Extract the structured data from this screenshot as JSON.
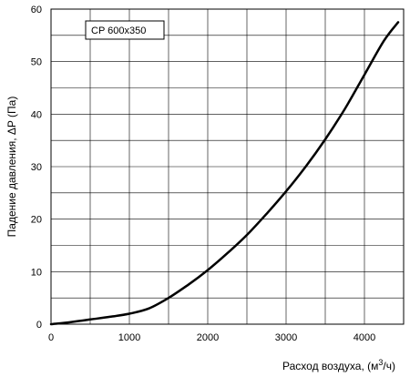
{
  "chart_data": {
    "type": "line",
    "xlabel_prefix": "Расход воздуха, (м",
    "xlabel_sup": "3",
    "xlabel_suffix": "/ч)",
    "ylabel": "Падение давления, ΔP (Па)",
    "xlim": [
      0,
      4500
    ],
    "ylim": [
      0,
      60
    ],
    "x_ticks": [
      0,
      1000,
      2000,
      3000,
      4000
    ],
    "y_ticks": [
      0,
      10,
      20,
      30,
      40,
      50,
      60
    ],
    "x_gridlines": [
      0,
      500,
      1000,
      1500,
      2000,
      2500,
      3000,
      3500,
      4000,
      4500
    ],
    "y_gridlines": [
      0,
      5,
      10,
      15,
      20,
      25,
      30,
      35,
      40,
      45,
      50,
      55,
      60
    ],
    "grid": true,
    "legend": "top-left",
    "series": [
      {
        "name": "CP  600x350",
        "x": [
          0,
          250,
          500,
          750,
          1000,
          1250,
          1500,
          1750,
          2000,
          2250,
          2500,
          2750,
          3000,
          3250,
          3500,
          3750,
          4000,
          4250,
          4430
        ],
        "y": [
          0,
          0.4,
          0.9,
          1.4,
          2.0,
          3.0,
          5.0,
          7.5,
          10.3,
          13.5,
          17.0,
          21.0,
          25.3,
          30.0,
          35.2,
          41.0,
          47.5,
          54.0,
          57.5
        ]
      }
    ],
    "colors": {
      "line": "#000000",
      "grid": "#000000",
      "frame": "#000000"
    }
  }
}
